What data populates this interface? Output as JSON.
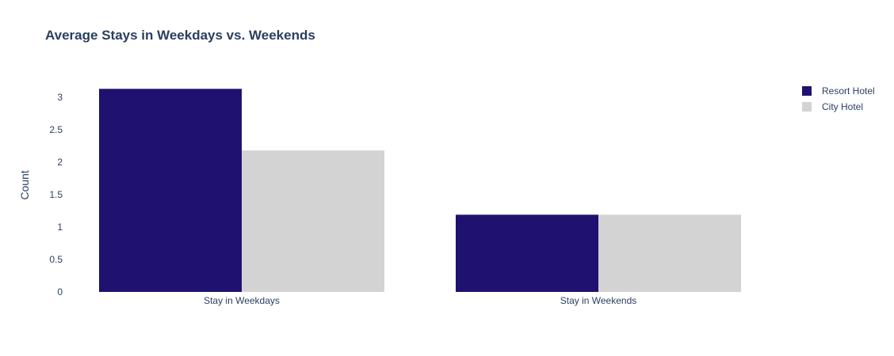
{
  "chart_data": {
    "type": "bar",
    "title": "Average Stays in Weekdays vs. Weekends",
    "xlabel": "",
    "ylabel": "Count",
    "categories": [
      "Stay in Weekdays",
      "Stay in Weekends"
    ],
    "series": [
      {
        "name": "Resort Hotel",
        "values": [
          3.13,
          1.19
        ],
        "color": "#1f116f"
      },
      {
        "name": "City Hotel",
        "values": [
          2.18,
          1.19
        ],
        "color": "#d3d3d3"
      }
    ],
    "ylim": [
      0,
      3.28
    ],
    "yticks": [
      0,
      0.5,
      1,
      1.5,
      2,
      2.5,
      3
    ],
    "ytick_labels": [
      "0",
      "0.5",
      "1",
      "1.5",
      "2",
      "2.5",
      "3"
    ],
    "grid": false,
    "legend_position": "top-right",
    "barmode": "group"
  }
}
